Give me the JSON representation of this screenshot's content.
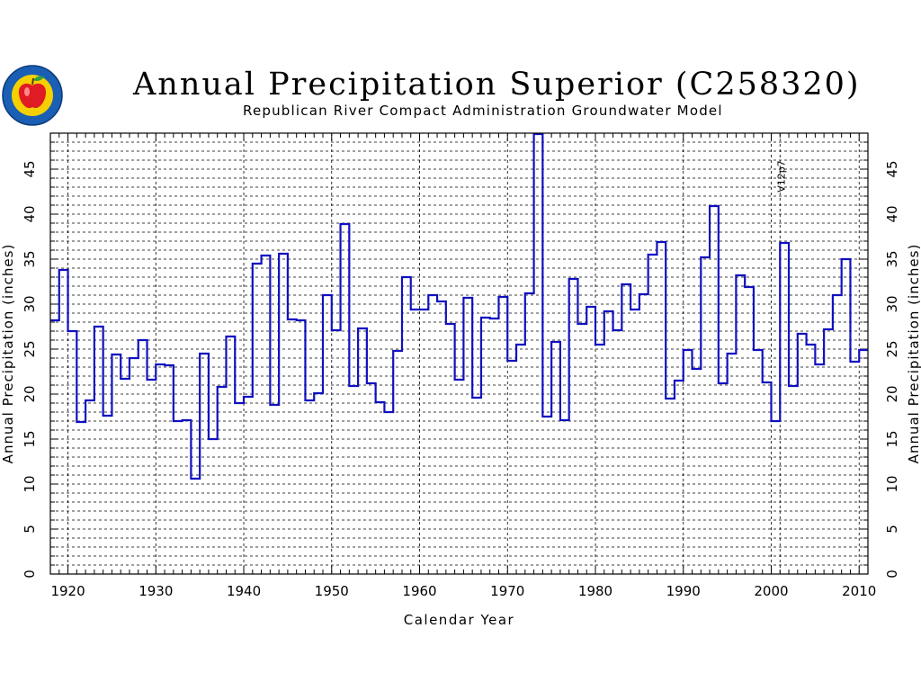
{
  "header": {
    "title": "Annual Precipitation Superior (C258320)",
    "subtitle": "Republican River Compact Administration Groundwater Model"
  },
  "logo": {
    "icon": "apple-seal-logo",
    "colors": {
      "ring": "#1a5fb4",
      "inner": "#f5d000",
      "apple": "#e01b24",
      "leaf": "#2ea043"
    }
  },
  "colors": {
    "series": "#1010c0",
    "grid": "#000000",
    "axis": "#000000"
  },
  "chart_data": {
    "type": "line",
    "step": true,
    "title": "Annual Precipitation Superior (C258320)",
    "subtitle": "Republican River Compact Administration Groundwater Model",
    "xlabel": "Calendar Year",
    "ylabel": "Annual Precipitation (inches)",
    "xlim": [
      1918,
      2011
    ],
    "ylim": [
      0,
      49
    ],
    "xticks": [
      1920,
      1930,
      1940,
      1950,
      1960,
      1970,
      1980,
      1990,
      2000,
      2010
    ],
    "yticks": [
      0,
      5,
      10,
      15,
      20,
      25,
      30,
      35,
      40,
      45
    ],
    "grid": true,
    "annotations": [
      {
        "text": "V12p7",
        "x": 2001
      }
    ],
    "x": [
      1918,
      1919,
      1920,
      1921,
      1922,
      1923,
      1924,
      1925,
      1926,
      1927,
      1928,
      1929,
      1930,
      1931,
      1932,
      1933,
      1934,
      1935,
      1936,
      1937,
      1938,
      1939,
      1940,
      1941,
      1942,
      1943,
      1944,
      1945,
      1946,
      1947,
      1948,
      1949,
      1950,
      1951,
      1952,
      1953,
      1954,
      1955,
      1956,
      1957,
      1958,
      1959,
      1960,
      1961,
      1962,
      1963,
      1964,
      1965,
      1966,
      1967,
      1968,
      1969,
      1970,
      1971,
      1972,
      1973,
      1974,
      1975,
      1976,
      1977,
      1978,
      1979,
      1980,
      1981,
      1982,
      1983,
      1984,
      1985,
      1986,
      1987,
      1988,
      1989,
      1990,
      1991,
      1992,
      1993,
      1994,
      1995,
      1996,
      1997,
      1998,
      1999,
      2000,
      2001,
      2002,
      2003,
      2004,
      2005,
      2006,
      2007,
      2008,
      2009,
      2010
    ],
    "series": [
      {
        "values": [
          28.2,
          33.8,
          27.0,
          16.9,
          19.3,
          27.5,
          17.6,
          24.4,
          21.7,
          24.0,
          26.0,
          21.6,
          23.3,
          23.2,
          17.0,
          17.1,
          10.6,
          24.5,
          15.0,
          20.8,
          26.4,
          19.0,
          19.7,
          34.5,
          35.4,
          18.8,
          35.6,
          28.3,
          28.2,
          19.3,
          20.1,
          31.0,
          27.1,
          38.9,
          20.9,
          27.3,
          21.2,
          19.1,
          18.0,
          24.8,
          33.0,
          29.4,
          29.4,
          31.0,
          30.3,
          27.8,
          21.6,
          30.7,
          19.6,
          28.5,
          28.4,
          30.8,
          23.7,
          25.5,
          31.2,
          48.9,
          17.5,
          25.8,
          17.1,
          32.8,
          27.8,
          29.7,
          25.5,
          29.2,
          27.1,
          32.2,
          29.4,
          31.1,
          35.5,
          36.9,
          19.5,
          21.5,
          24.9,
          22.8,
          35.2,
          40.9,
          21.2,
          24.5,
          33.2,
          31.9,
          24.9,
          21.3,
          17.0,
          36.8,
          20.9,
          26.7,
          25.5,
          23.3,
          27.2,
          31.0,
          35.0,
          23.6,
          24.9
        ]
      }
    ]
  }
}
